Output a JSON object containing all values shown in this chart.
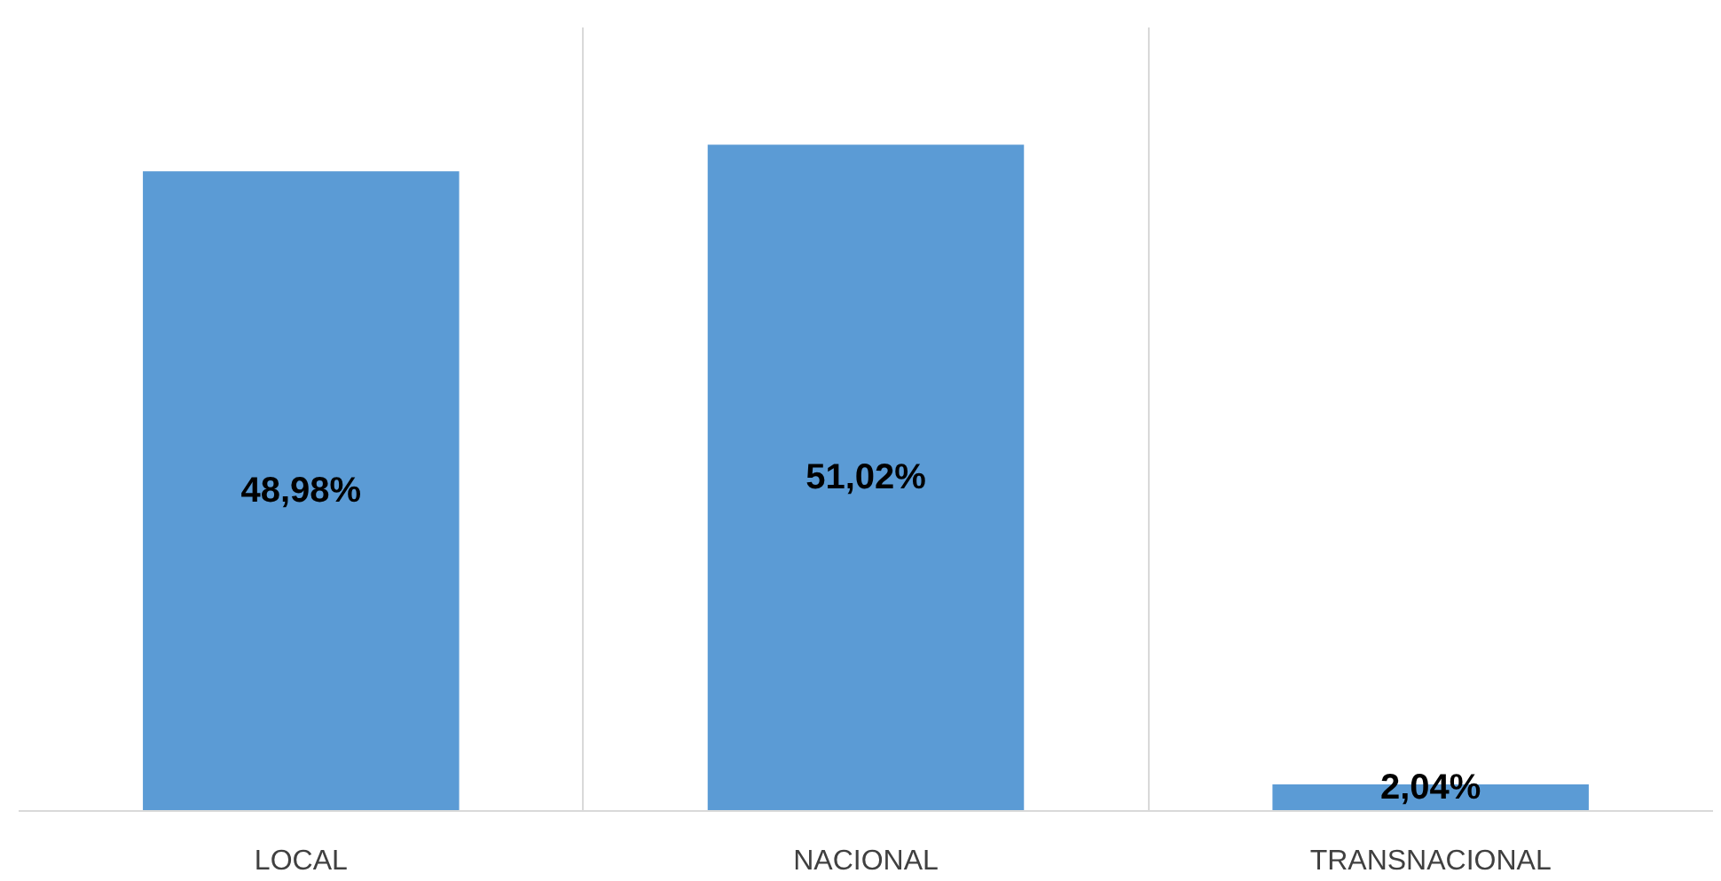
{
  "chart_data": {
    "type": "bar",
    "categories": [
      "LOCAL",
      "NACIONAL",
      "TRANSNACIONAL"
    ],
    "values": [
      48.98,
      51.02,
      2.04
    ],
    "value_labels": [
      "48,98%",
      "51,02%",
      "2,04%"
    ],
    "color": "#5b9bd5",
    "ylim": [
      0,
      60
    ],
    "grid": "x"
  }
}
